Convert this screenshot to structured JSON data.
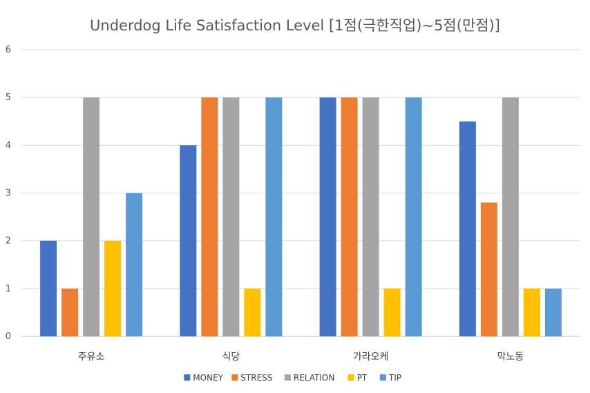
{
  "chart_data": {
    "type": "bar",
    "title": "Underdog Life Satisfaction Level [1점(극한직업)~5점(만점)]",
    "xlabel": "",
    "ylabel": "",
    "categories": [
      "주유소",
      "식당",
      "가라오케",
      "막노동"
    ],
    "series": [
      {
        "name": "MONEY",
        "color": "#4472C4",
        "values": [
          2,
          4,
          5,
          4.5
        ]
      },
      {
        "name": "STRESS",
        "color": "#ED7D31",
        "values": [
          1,
          5,
          5,
          2.8
        ]
      },
      {
        "name": "RELATION",
        "color": "#A5A5A5",
        "values": [
          5,
          5,
          5,
          5
        ]
      },
      {
        "name": "PT",
        "color": "#FFC000",
        "values": [
          2,
          1,
          1,
          1
        ]
      },
      {
        "name": "TIP",
        "color": "#5B9BD5",
        "values": [
          3,
          5,
          5,
          1
        ]
      }
    ],
    "ylim": [
      0,
      6
    ],
    "yticks": [
      0,
      1,
      2,
      3,
      4,
      5,
      6
    ],
    "grid": true,
    "legend_position": "bottom"
  }
}
